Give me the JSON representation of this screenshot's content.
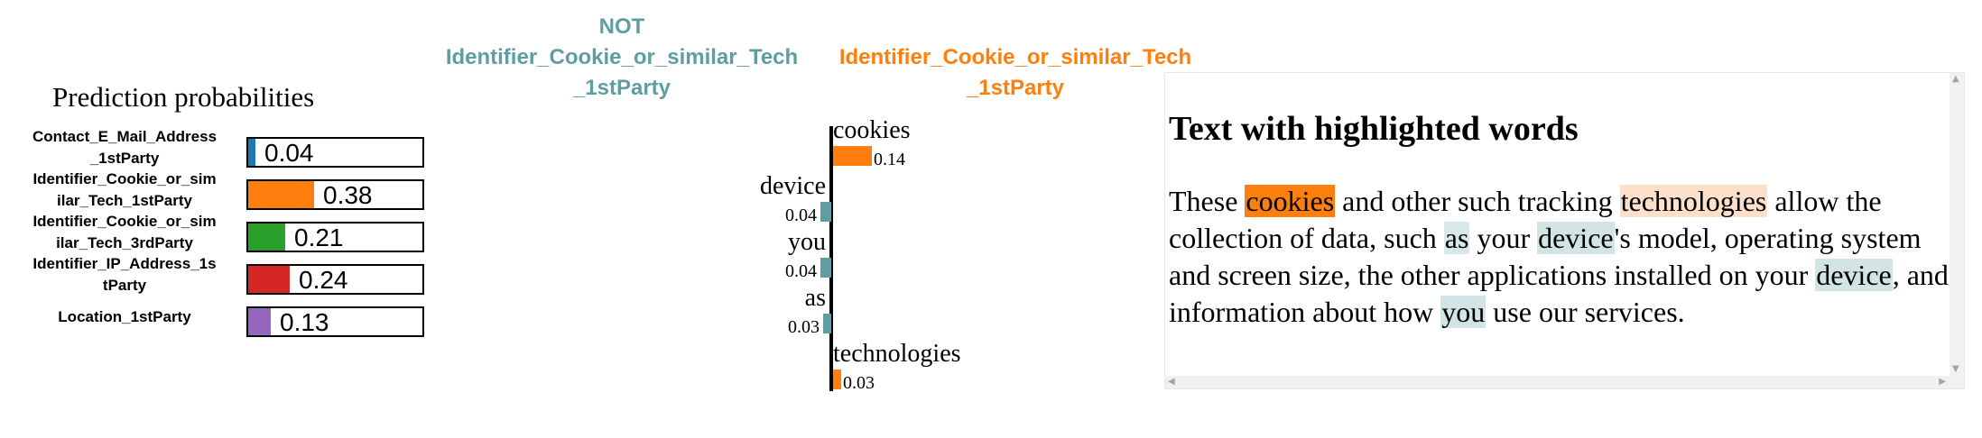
{
  "prediction_panel": {
    "title": "Prediction probabilities",
    "rows": [
      {
        "label_line1": "Contact_E_Mail_Address",
        "label_line2": "_1stParty",
        "value_text": "0.04",
        "value": 0.04,
        "color": "#1f77b4"
      },
      {
        "label_line1": "Identifier_Cookie_or_sim",
        "label_line2": "ilar_Tech_1stParty",
        "value_text": "0.38",
        "value": 0.38,
        "color": "#ff7f0e"
      },
      {
        "label_line1": "Identifier_Cookie_or_sim",
        "label_line2": "ilar_Tech_3rdParty",
        "value_text": "0.21",
        "value": 0.21,
        "color": "#2ca02c"
      },
      {
        "label_line1": "Identifier_IP_Address_1s",
        "label_line2": "tParty",
        "value_text": "0.24",
        "value": 0.24,
        "color": "#d62728"
      },
      {
        "label_line1": "Location_1stParty",
        "label_line2": "",
        "value_text": "0.13",
        "value": 0.13,
        "color": "#9467bd"
      }
    ]
  },
  "feature_panel": {
    "negative_header": {
      "line1": "NOT",
      "line2": "Identifier_Cookie_or_similar_Tech",
      "line3": "_1stParty",
      "color": "#5f9ea0"
    },
    "positive_header": {
      "line1": "Identifier_Cookie_or_similar_Tech",
      "line2": "_1stParty",
      "color": "#ff7f0e"
    },
    "features": [
      {
        "word": "cookies",
        "value_text": "0.14",
        "weight": 0.14,
        "side": "positive"
      },
      {
        "word": "device",
        "value_text": "0.04",
        "weight": 0.04,
        "side": "negative"
      },
      {
        "word": "you",
        "value_text": "0.04",
        "weight": 0.04,
        "side": "negative"
      },
      {
        "word": "as",
        "value_text": "0.03",
        "weight": 0.03,
        "side": "negative"
      },
      {
        "word": "technologies",
        "value_text": "0.03",
        "weight": 0.03,
        "side": "positive"
      }
    ]
  },
  "text_panel": {
    "title": "Text with highlighted words",
    "segments": [
      {
        "text": "These ",
        "hl": null
      },
      {
        "text": "cookies",
        "hl": "#ff7f0e"
      },
      {
        "text": " and other such tracking ",
        "hl": null
      },
      {
        "text": "technologies",
        "hl": "#fde0c9"
      },
      {
        "text": " allow the collection of data, such ",
        "hl": null
      },
      {
        "text": "as",
        "hl": "#d8e7e8"
      },
      {
        "text": " your ",
        "hl": null
      },
      {
        "text": "device",
        "hl": "#d3e4e5"
      },
      {
        "text": "'s model, operating system and screen size, the other applications installed on your ",
        "hl": null
      },
      {
        "text": "device",
        "hl": "#d3e4e5"
      },
      {
        "text": ", and information about how ",
        "hl": null
      },
      {
        "text": "you",
        "hl": "#d3e4e5"
      },
      {
        "text": " use our services.",
        "hl": null
      }
    ]
  },
  "icons": {
    "scroll_up": "▲",
    "scroll_down": "▼",
    "scroll_left": "◀",
    "scroll_right": "▶"
  }
}
